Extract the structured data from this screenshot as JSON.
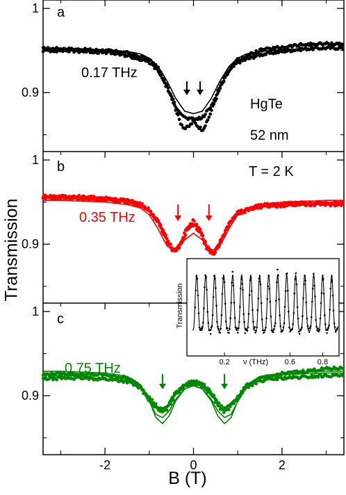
{
  "figure": {
    "ylabel": "Transmission",
    "xlabel": "B (T)",
    "x_ticks": [
      "-2",
      "0",
      "2"
    ]
  },
  "chart_data": [
    {
      "type": "scatter",
      "panel": "a",
      "annotations": [
        "0.17 THz",
        "HgTe",
        "52 nm"
      ],
      "color": "#000000",
      "xlim": [
        -3.4,
        3.4
      ],
      "ylim": [
        0.83,
        1.01
      ],
      "yticks": [
        {
          "value": 1.0,
          "label": "1"
        },
        {
          "value": 0.9,
          "label": "0.9"
        }
      ],
      "arrows_at_B": [
        -0.15,
        0.15
      ],
      "series": [
        {
          "kind": "data",
          "x": [
            -3.4,
            -3.0,
            -2.5,
            -2.0,
            -1.5,
            -1.0,
            -0.8,
            -0.6,
            -0.4,
            -0.3,
            -0.2,
            -0.1,
            0,
            0.1,
            0.2,
            0.3,
            0.4,
            0.6,
            0.8,
            1.0,
            1.5,
            2.0,
            2.5,
            3.0,
            3.4
          ],
          "y": [
            0.952,
            0.952,
            0.951,
            0.95,
            0.947,
            0.939,
            0.929,
            0.91,
            0.88,
            0.865,
            0.857,
            0.86,
            0.866,
            0.86,
            0.856,
            0.864,
            0.878,
            0.905,
            0.925,
            0.936,
            0.945,
            0.949,
            0.952,
            0.953,
            0.953
          ]
        },
        {
          "kind": "data",
          "x": [
            -3.4,
            -3.0,
            -2.5,
            -2.0,
            -1.5,
            -1.0,
            -0.8,
            -0.6,
            -0.4,
            -0.2,
            0,
            0.2,
            0.4,
            0.6,
            0.8,
            1.0,
            1.5,
            2.0,
            2.5,
            3.0,
            3.4
          ],
          "y": [
            0.95,
            0.95,
            0.949,
            0.948,
            0.944,
            0.936,
            0.926,
            0.906,
            0.884,
            0.87,
            0.868,
            0.87,
            0.884,
            0.908,
            0.928,
            0.939,
            0.95,
            0.954,
            0.957,
            0.958,
            0.958
          ]
        },
        {
          "kind": "fit",
          "x": [
            -3.4,
            -3.0,
            -2.5,
            -2.0,
            -1.5,
            -1.2,
            -1.0,
            -0.8,
            -0.6,
            -0.4,
            -0.2,
            0,
            0.2,
            0.4,
            0.6,
            0.8,
            1.0,
            1.2,
            1.5,
            2.0,
            2.5,
            3.0,
            3.4
          ],
          "y": [
            0.953,
            0.953,
            0.952,
            0.951,
            0.949,
            0.946,
            0.941,
            0.931,
            0.914,
            0.893,
            0.878,
            0.875,
            0.878,
            0.893,
            0.914,
            0.931,
            0.941,
            0.946,
            0.949,
            0.951,
            0.952,
            0.953,
            0.953
          ]
        }
      ]
    },
    {
      "type": "scatter",
      "panel": "b",
      "annotations": [
        "T = 2 K",
        "0.35 THz"
      ],
      "color": "#ff0000",
      "xlim": [
        -3.4,
        3.4
      ],
      "ylim": [
        0.83,
        1.01
      ],
      "yticks": [
        {
          "value": 1.0,
          "label": "1"
        },
        {
          "value": 0.9,
          "label": "0.9"
        }
      ],
      "arrows_at_B": [
        -0.35,
        0.35
      ],
      "series": [
        {
          "kind": "data",
          "x": [
            -3.4,
            -3.0,
            -2.5,
            -2.0,
            -1.5,
            -1.2,
            -1.0,
            -0.8,
            -0.6,
            -0.45,
            -0.3,
            -0.15,
            0,
            0.15,
            0.3,
            0.45,
            0.6,
            0.8,
            1.0,
            1.5,
            2.0,
            2.5,
            3.0,
            3.4
          ],
          "y": [
            0.957,
            0.957,
            0.956,
            0.955,
            0.952,
            0.948,
            0.941,
            0.928,
            0.907,
            0.892,
            0.9,
            0.92,
            0.928,
            0.918,
            0.898,
            0.888,
            0.903,
            0.925,
            0.938,
            0.946,
            0.948,
            0.949,
            0.949,
            0.949
          ]
        },
        {
          "kind": "data",
          "x": [
            -3.4,
            -3.0,
            -2.5,
            -2.0,
            -1.5,
            -1.2,
            -1.0,
            -0.8,
            -0.6,
            -0.45,
            -0.3,
            -0.15,
            0,
            0.15,
            0.3,
            0.45,
            0.6,
            0.8,
            1.0,
            1.5,
            2.0,
            2.5,
            3.0,
            3.4
          ],
          "y": [
            0.955,
            0.955,
            0.954,
            0.953,
            0.95,
            0.946,
            0.939,
            0.926,
            0.904,
            0.89,
            0.898,
            0.916,
            0.924,
            0.914,
            0.895,
            0.886,
            0.901,
            0.923,
            0.937,
            0.944,
            0.946,
            0.947,
            0.947,
            0.947
          ]
        },
        {
          "kind": "fit",
          "x": [
            -3.4,
            -3.0,
            -2.5,
            -2.0,
            -1.5,
            -1.2,
            -1.0,
            -0.8,
            -0.6,
            -0.45,
            -0.35,
            -0.2,
            0,
            0.2,
            0.35,
            0.45,
            0.6,
            0.8,
            1.0,
            1.2,
            1.5,
            2.0,
            2.5,
            3.0,
            3.4
          ],
          "y": [
            0.952,
            0.952,
            0.951,
            0.95,
            0.947,
            0.943,
            0.935,
            0.918,
            0.898,
            0.893,
            0.895,
            0.905,
            0.913,
            0.905,
            0.895,
            0.893,
            0.898,
            0.918,
            0.935,
            0.943,
            0.947,
            0.95,
            0.951,
            0.952,
            0.952
          ]
        }
      ]
    },
    {
      "type": "scatter",
      "panel": "c",
      "annotations": [
        "0.75 THz"
      ],
      "color": "#008800",
      "xlim": [
        -3.4,
        3.4
      ],
      "ylim": [
        0.83,
        1.01
      ],
      "yticks": [
        {
          "value": 1.0,
          "label": "1"
        },
        {
          "value": 0.9,
          "label": "0.9"
        }
      ],
      "arrows_at_B": [
        -0.7,
        0.7
      ],
      "series": [
        {
          "kind": "data",
          "x": [
            -3.4,
            -3.0,
            -2.5,
            -2.0,
            -1.5,
            -1.2,
            -1.0,
            -0.8,
            -0.7,
            -0.6,
            -0.4,
            -0.2,
            0,
            0.2,
            0.4,
            0.6,
            0.7,
            0.8,
            1.0,
            1.2,
            1.5,
            2.0,
            2.5,
            3.0,
            3.4
          ],
          "y": [
            0.925,
            0.926,
            0.925,
            0.925,
            0.921,
            0.912,
            0.898,
            0.886,
            0.883,
            0.887,
            0.904,
            0.914,
            0.917,
            0.914,
            0.904,
            0.888,
            0.884,
            0.888,
            0.899,
            0.912,
            0.92,
            0.926,
            0.929,
            0.932,
            0.933
          ]
        },
        {
          "kind": "data",
          "x": [
            -3.4,
            -3.0,
            -2.5,
            -2.0,
            -1.5,
            -1.2,
            -1.0,
            -0.8,
            -0.7,
            -0.6,
            -0.4,
            -0.2,
            0,
            0.2,
            0.4,
            0.6,
            0.7,
            0.8,
            1.0,
            1.2,
            1.5,
            2.0,
            2.5,
            3.0,
            3.4
          ],
          "y": [
            0.92,
            0.921,
            0.921,
            0.92,
            0.917,
            0.909,
            0.895,
            0.883,
            0.88,
            0.884,
            0.902,
            0.912,
            0.915,
            0.912,
            0.902,
            0.885,
            0.881,
            0.885,
            0.897,
            0.91,
            0.918,
            0.921,
            0.922,
            0.924,
            0.924
          ]
        },
        {
          "kind": "fit",
          "x": [
            -3.4,
            -3.0,
            -2.5,
            -2.0,
            -1.5,
            -1.2,
            -1.0,
            -0.85,
            -0.7,
            -0.55,
            -0.4,
            -0.2,
            0,
            0.2,
            0.4,
            0.55,
            0.7,
            0.85,
            1.0,
            1.2,
            1.5,
            2.0,
            2.5,
            3.0,
            3.4
          ],
          "y": [
            0.927,
            0.927,
            0.926,
            0.925,
            0.92,
            0.91,
            0.893,
            0.878,
            0.874,
            0.882,
            0.896,
            0.908,
            0.912,
            0.908,
            0.896,
            0.882,
            0.874,
            0.878,
            0.893,
            0.91,
            0.92,
            0.925,
            0.926,
            0.927,
            0.927
          ]
        },
        {
          "kind": "fit",
          "x": [
            -3.4,
            -3.0,
            -2.5,
            -2.0,
            -1.5,
            -1.2,
            -1.0,
            -0.85,
            -0.7,
            -0.55,
            -0.4,
            -0.2,
            0,
            0.2,
            0.4,
            0.55,
            0.7,
            0.85,
            1.0,
            1.2,
            1.5,
            2.0,
            2.5,
            3.0,
            3.4
          ],
          "y": [
            0.929,
            0.929,
            0.928,
            0.927,
            0.923,
            0.913,
            0.894,
            0.874,
            0.867,
            0.876,
            0.894,
            0.908,
            0.913,
            0.908,
            0.894,
            0.876,
            0.867,
            0.874,
            0.894,
            0.913,
            0.923,
            0.927,
            0.928,
            0.929,
            0.929
          ]
        }
      ]
    },
    {
      "type": "line",
      "panel": "inset",
      "xlabel": "ν (THz)",
      "ylabel": "Transmission",
      "xlim": [
        0,
        0.9
      ],
      "ylim": [
        0,
        1.1
      ],
      "xticks": [
        {
          "value": 0.2,
          "label": "0.2"
        },
        {
          "value": 0.6,
          "label": "0.6"
        },
        {
          "value": 0.8,
          "label": "0.8"
        }
      ],
      "fringe_peaks_THz": [
        0.03,
        0.085,
        0.14,
        0.195,
        0.25,
        0.305,
        0.36,
        0.415,
        0.47,
        0.525,
        0.58,
        0.635,
        0.69,
        0.745,
        0.8,
        0.855
      ],
      "fit_peak_transmission": 0.93,
      "fit_valley_transmission": 0.28
    }
  ]
}
